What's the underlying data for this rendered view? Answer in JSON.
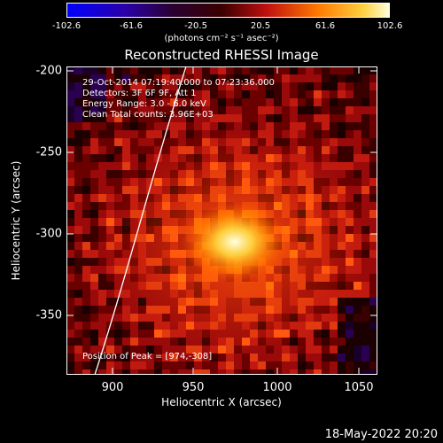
{
  "colorbar": {
    "ticks": [
      "-102.6",
      "-61.6",
      "-20.5",
      "20.5",
      "61.6",
      "102.6"
    ],
    "units": "(photons cm⁻² s⁻¹ asec⁻²)"
  },
  "title": "Reconstructed RHESSI Image",
  "info": {
    "line1": "29-Oct-2014 07:19:40.000 to 07:23:36.000",
    "line2": "Detectors: 3F 6F 9F, Att 1",
    "line3": "Energy Range: 3.0 - 6.0 keV",
    "line4": "Clean    Total counts: 3.96E+03"
  },
  "peak_text": "Position of Peak = [974,-308]",
  "axes": {
    "xlabel": "Heliocentric X (arcsec)",
    "ylabel": "Heliocentric Y (arcsec)",
    "xticks": [
      "900",
      "950",
      "1000",
      "1050"
    ],
    "yticks": [
      "-200",
      "-250",
      "-300",
      "-350"
    ]
  },
  "footer_timestamp": "18-May-2022 20:20",
  "colors": {
    "background": "#000000",
    "limb_line": "#ffffff",
    "text": "#ffffff"
  }
}
